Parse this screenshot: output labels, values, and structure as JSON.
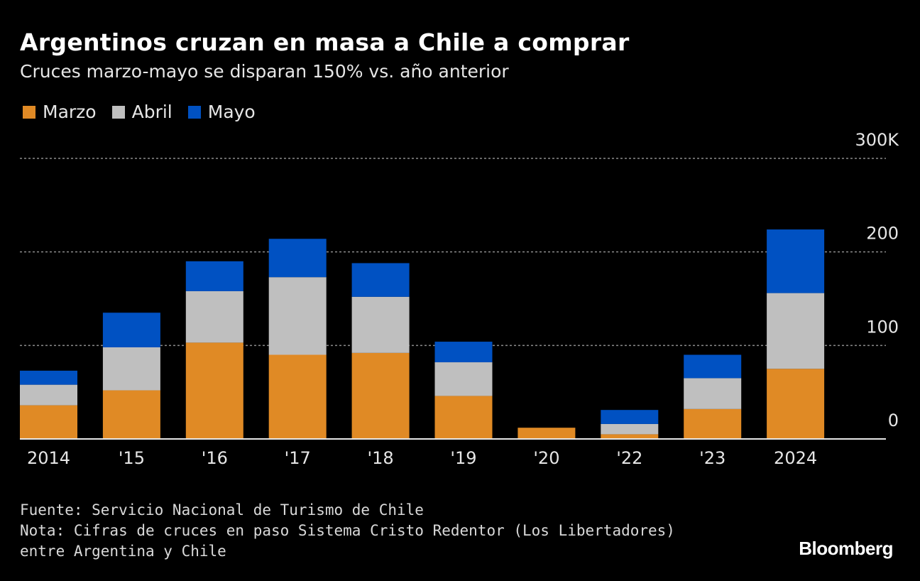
{
  "title": "Argentinos cruzan en masa a Chile a comprar",
  "subtitle": "Cruces marzo-mayo se disparan 150% vs. año anterior",
  "footer": {
    "source": "Fuente: Servicio Nacional de Turismo de Chile",
    "note_line1": "Nota: Cifras de cruces en paso Sistema Cristo Redentor (Los Libertadores)",
    "note_line2": "entre Argentina y Chile"
  },
  "logo": "Bloomberg",
  "chart_data": {
    "type": "bar",
    "stacked": true,
    "categories": [
      "2014",
      "'15",
      "'16",
      "'17",
      "'18",
      "'19",
      "'20",
      "'22",
      "'23",
      "2024"
    ],
    "series": [
      {
        "name": "Marzo",
        "color": "#e08a25",
        "values": [
          36,
          52,
          103,
          90,
          92,
          46,
          12,
          5,
          32,
          75
        ]
      },
      {
        "name": "Abril",
        "color": "#bfbfbf",
        "values": [
          22,
          46,
          55,
          83,
          60,
          36,
          0,
          11,
          33,
          81
        ]
      },
      {
        "name": "Mayo",
        "color": "#0051c2",
        "values": [
          15,
          37,
          32,
          41,
          36,
          22,
          0,
          15,
          25,
          68
        ]
      }
    ],
    "ylim": [
      0,
      300
    ],
    "y_ticks": [
      0,
      100,
      200,
      300
    ],
    "y_tick_labels": [
      "0",
      "100",
      "200",
      "300K"
    ],
    "y_axis_position": "right",
    "grid": true,
    "legend_position": "top-left"
  }
}
